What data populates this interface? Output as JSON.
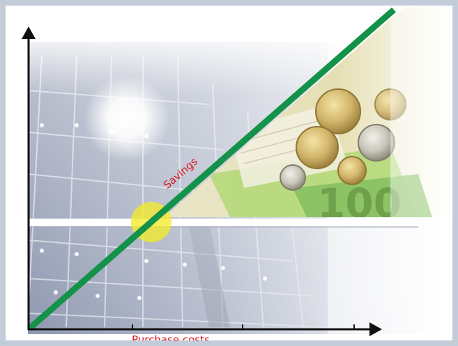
{
  "diagram": {
    "savings_label": "Savings",
    "purchase_costs_label": "Purchase costs"
  },
  "colors": {
    "frame": "#c3ccd9",
    "savings_line": "#15924a",
    "break_even": "#f4ea2a",
    "label_red": "#d9141e",
    "axis": "#111111"
  },
  "icons": [
    "sun-glow-icon",
    "euro-coins-icon",
    "banknote-icon",
    "solar-panel-photo"
  ]
}
